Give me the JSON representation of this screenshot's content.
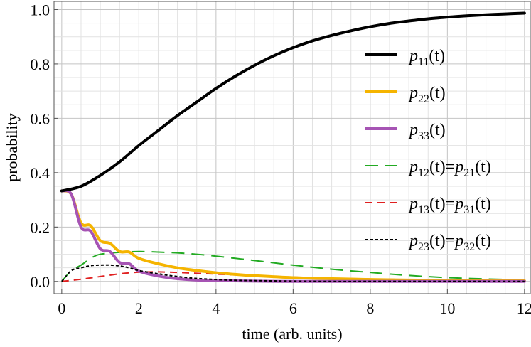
{
  "chart_data": {
    "type": "line",
    "title": "",
    "xlabel": "time (arb. units)",
    "ylabel": "probability",
    "xlim": [
      -0.2,
      12.15
    ],
    "ylim": [
      -0.045,
      1.03
    ],
    "xticks": [
      0,
      2,
      4,
      6,
      8,
      10,
      12
    ],
    "yticks": [
      0.0,
      0.2,
      0.4,
      0.6,
      0.8,
      1.0
    ],
    "xtick_labels": [
      "0",
      "2",
      "4",
      "6",
      "8",
      "10",
      "12"
    ],
    "ytick_labels": [
      "0.0",
      "0.2",
      "0.4",
      "0.6",
      "0.8",
      "1.0"
    ],
    "grid": true,
    "legend_position": "right",
    "series": [
      {
        "name": "p11(t)",
        "legend": {
          "base": "p",
          "sub1": "11",
          "rest": "(t)"
        },
        "color": "#000000",
        "style": "solid",
        "x": [
          0,
          0.5,
          1,
          1.5,
          2,
          2.5,
          3,
          3.5,
          4,
          4.5,
          5,
          5.5,
          6,
          6.5,
          7,
          7.5,
          8,
          8.5,
          9,
          9.5,
          10,
          10.5,
          11,
          11.5,
          12
        ],
        "y": [
          0.333,
          0.35,
          0.39,
          0.44,
          0.5,
          0.555,
          0.61,
          0.66,
          0.71,
          0.755,
          0.795,
          0.83,
          0.86,
          0.885,
          0.905,
          0.922,
          0.937,
          0.949,
          0.958,
          0.966,
          0.972,
          0.977,
          0.981,
          0.984,
          0.987
        ]
      },
      {
        "name": "p22(t)",
        "legend": {
          "base": "p",
          "sub1": "22",
          "rest": "(t)"
        },
        "color": "#f5b400",
        "style": "solid",
        "x": [
          0,
          0.25,
          0.5,
          0.75,
          1,
          1.25,
          1.5,
          1.75,
          2,
          2.5,
          3,
          3.5,
          4,
          4.5,
          5,
          6,
          7,
          8,
          9,
          10,
          11,
          12
        ],
        "y": [
          0.333,
          0.32,
          0.215,
          0.205,
          0.15,
          0.14,
          0.11,
          0.108,
          0.085,
          0.065,
          0.05,
          0.04,
          0.032,
          0.026,
          0.021,
          0.014,
          0.01,
          0.007,
          0.005,
          0.004,
          0.003,
          0.002
        ]
      },
      {
        "name": "p33(t)",
        "legend": {
          "base": "p",
          "sub1": "33",
          "rest": "(t)"
        },
        "color": "#a654b4",
        "style": "solid",
        "x": [
          0,
          0.25,
          0.5,
          0.75,
          1,
          1.25,
          1.5,
          1.75,
          2,
          2.5,
          3,
          3.5,
          4,
          4.5,
          5,
          6,
          7,
          8,
          9,
          10,
          11,
          12
        ],
        "y": [
          0.333,
          0.32,
          0.2,
          0.185,
          0.12,
          0.11,
          0.07,
          0.065,
          0.038,
          0.02,
          0.01,
          0.005,
          0.003,
          0.002,
          0.001,
          0.0,
          0.0,
          0.0,
          0.0,
          0.0,
          0.0,
          0.0
        ]
      },
      {
        "name": "p12(t)=p21(t)",
        "legend": {
          "base": "p",
          "sub1": "12",
          "mid": "(t)=",
          "base2": "p",
          "sub2": "21",
          "rest": "(t)"
        },
        "color": "#22aa22",
        "style": "long-dash",
        "x": [
          0,
          0.25,
          0.5,
          0.75,
          1,
          1.5,
          2,
          2.5,
          3,
          3.5,
          4,
          4.5,
          5,
          6,
          7,
          8,
          9,
          10,
          11,
          12
        ],
        "y": [
          0.0,
          0.04,
          0.06,
          0.085,
          0.1,
          0.107,
          0.11,
          0.108,
          0.105,
          0.1,
          0.093,
          0.085,
          0.077,
          0.06,
          0.045,
          0.033,
          0.022,
          0.014,
          0.009,
          0.006
        ]
      },
      {
        "name": "p13(t)=p31(t)",
        "legend": {
          "base": "p",
          "sub1": "13",
          "mid": "(t)=",
          "base2": "p",
          "sub2": "31",
          "rest": "(t)"
        },
        "color": "#e02020",
        "style": "dash",
        "x": [
          0,
          0.5,
          1,
          1.5,
          2,
          2.5,
          3,
          3.5,
          4,
          4.5,
          5,
          6,
          7,
          8,
          9,
          10,
          11,
          12
        ],
        "y": [
          0.0,
          0.008,
          0.018,
          0.028,
          0.034,
          0.035,
          0.033,
          0.03,
          0.027,
          0.024,
          0.021,
          0.016,
          0.012,
          0.009,
          0.007,
          0.005,
          0.004,
          0.003
        ]
      },
      {
        "name": "p23(t)=p32(t)",
        "legend": {
          "base": "p",
          "sub1": "23",
          "mid": "(t)=",
          "base2": "p",
          "sub2": "32",
          "rest": "(t)"
        },
        "color": "#000000",
        "style": "dotted",
        "x": [
          0,
          0.25,
          0.5,
          0.75,
          1,
          1.25,
          1.5,
          1.75,
          2,
          2.5,
          3,
          3.5,
          4,
          4.5,
          5,
          6,
          7,
          8,
          10,
          12
        ],
        "y": [
          0.0,
          0.04,
          0.05,
          0.058,
          0.06,
          0.06,
          0.057,
          0.05,
          0.04,
          0.028,
          0.018,
          0.011,
          0.007,
          0.004,
          0.003,
          0.001,
          0.0,
          0.0,
          0.0,
          0.0
        ]
      }
    ]
  }
}
